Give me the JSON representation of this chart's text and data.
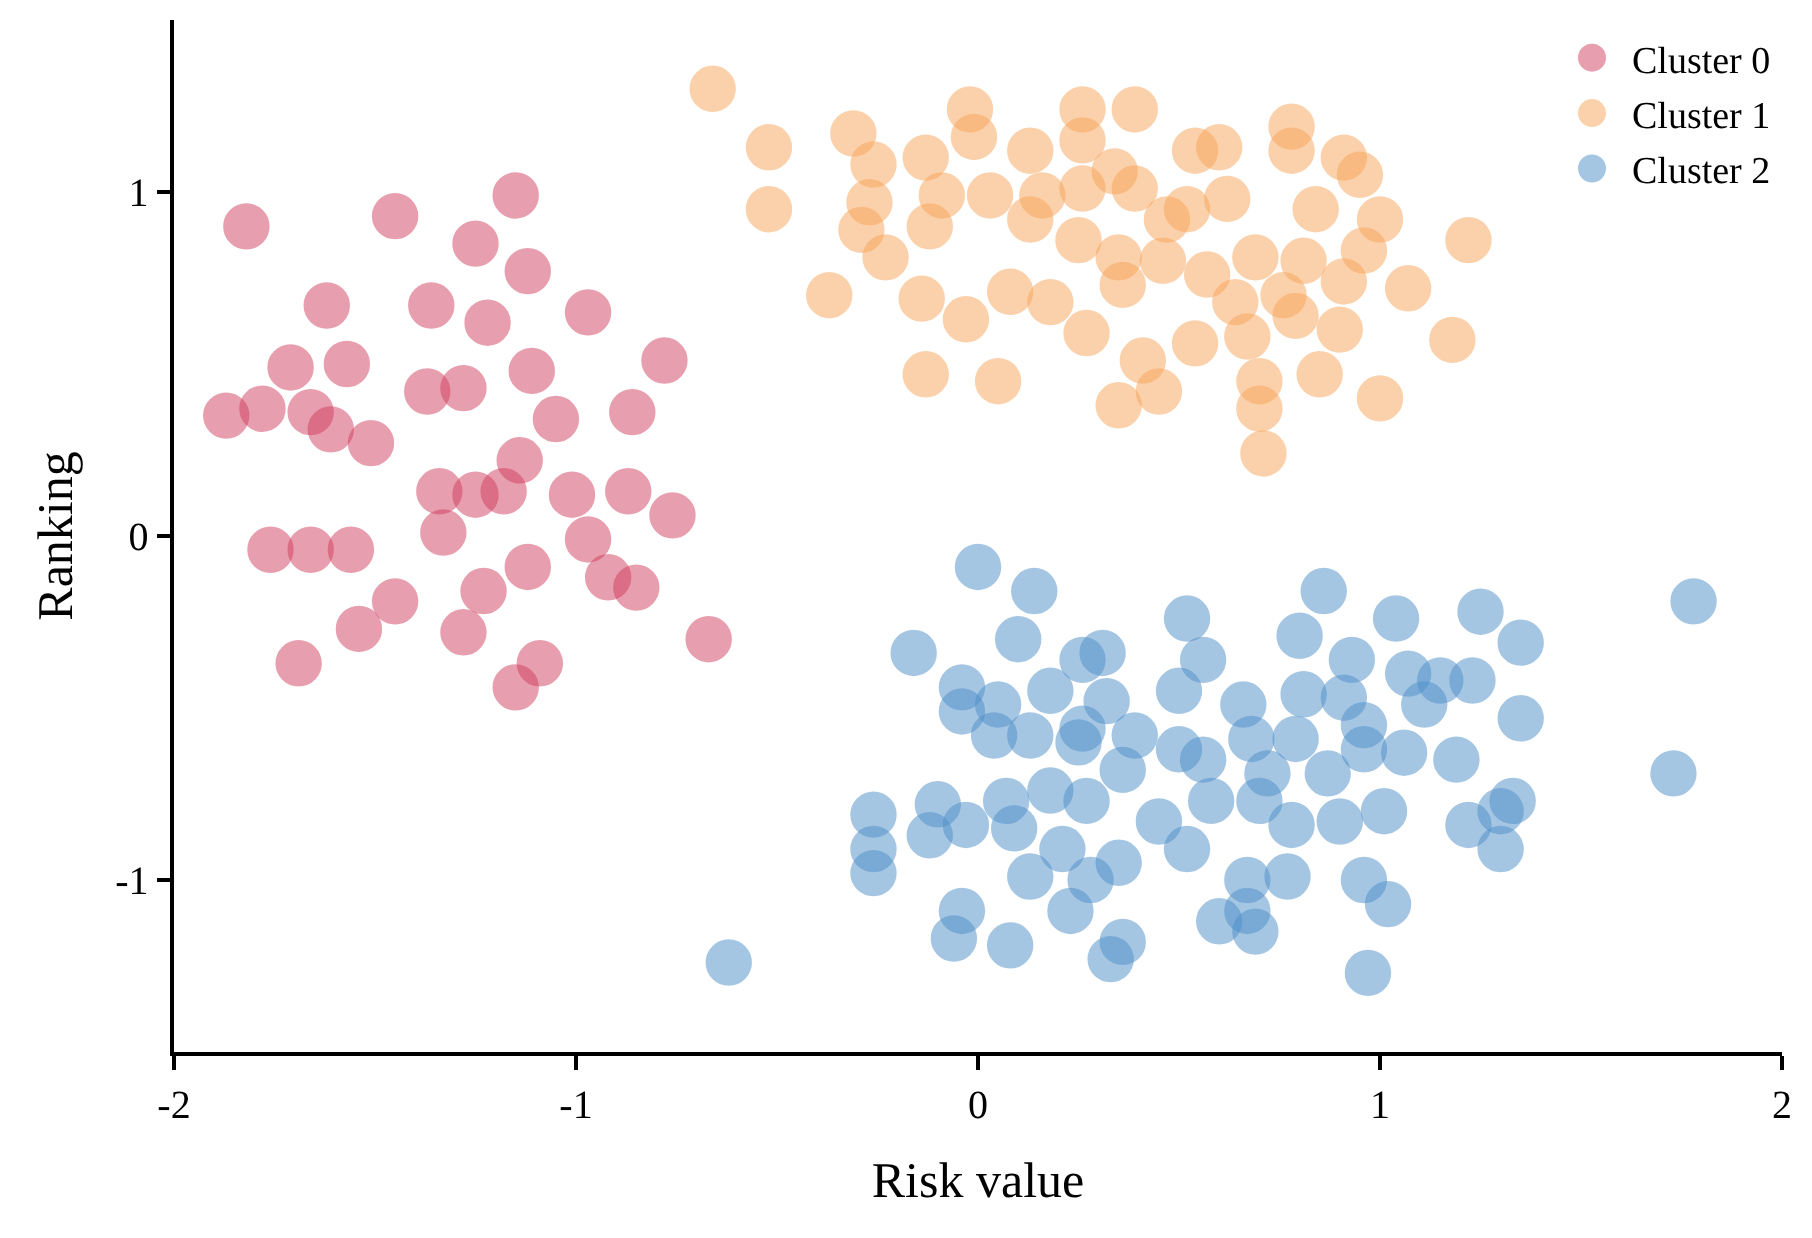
{
  "chart_data": {
    "type": "scatter",
    "xlabel": "Risk value",
    "ylabel": "Ranking",
    "xlim": [
      -2,
      2
    ],
    "ylim": [
      -1.5,
      1.5
    ],
    "xticks": [
      -2,
      -1,
      0,
      1,
      2
    ],
    "yticks": [
      -1,
      0,
      1
    ],
    "legend": "top right",
    "marker": "circle",
    "series": [
      {
        "name": "Cluster 0",
        "color": "#d1405f",
        "x": [
          -1.82,
          -1.45,
          -1.15,
          -1.25,
          -1.62,
          -1.36,
          -1.12,
          -0.97,
          -1.22,
          -0.78,
          -1.37,
          -1.57,
          -1.71,
          -1.87,
          -1.78,
          -1.66,
          -1.61,
          -1.51,
          -1.28,
          -1.11,
          -1.14,
          -1.05,
          -0.86,
          -1.01,
          -1.34,
          -1.25,
          -1.18,
          -0.87,
          -0.76,
          -1.76,
          -1.66,
          -1.56,
          -0.97,
          -1.33,
          -1.12,
          -0.92,
          -0.85,
          -1.45,
          -1.23,
          -1.69,
          -1.54,
          -1.28,
          -0.67,
          -1.09,
          -1.15
        ],
        "values": [
          0.9,
          0.93,
          0.99,
          0.85,
          0.67,
          0.67,
          0.77,
          0.65,
          0.62,
          0.51,
          0.42,
          0.5,
          0.49,
          0.35,
          0.37,
          0.36,
          0.31,
          0.27,
          0.43,
          0.48,
          0.22,
          0.34,
          0.36,
          0.12,
          0.13,
          0.12,
          0.13,
          0.13,
          0.06,
          -0.04,
          -0.04,
          -0.04,
          -0.01,
          0.01,
          -0.09,
          -0.12,
          -0.15,
          -0.19,
          -0.16,
          -0.37,
          -0.27,
          -0.28,
          -0.3,
          -0.37,
          -0.44
        ]
      },
      {
        "name": "Cluster 1",
        "color": "#f9a55a",
        "x": [
          -0.66,
          -0.52,
          -0.52,
          -0.31,
          -0.26,
          -0.27,
          -0.29,
          -0.23,
          -0.37,
          -0.13,
          -0.09,
          -0.12,
          -0.02,
          -0.01,
          0.03,
          0.16,
          0.13,
          0.26,
          0.26,
          0.39,
          0.6,
          0.78,
          0.78,
          0.91,
          0.95,
          1.0,
          0.84,
          0.54,
          0.52,
          0.26,
          0.39,
          0.47,
          0.13,
          0.25,
          0.35,
          0.46,
          0.57,
          0.69,
          0.81,
          0.96,
          0.08,
          0.18,
          0.36,
          0.64,
          0.76,
          0.91,
          1.07,
          1.22,
          1.18,
          -0.13,
          0.05,
          0.27,
          0.41,
          0.54,
          0.67,
          0.79,
          0.9,
          0.7,
          0.85,
          1.0,
          0.35,
          0.45,
          0.7,
          0.71,
          -0.03,
          -0.14,
          0.34,
          0.62
        ],
        "values": [
          1.3,
          1.13,
          0.95,
          1.17,
          1.08,
          0.97,
          0.89,
          0.81,
          0.7,
          1.1,
          0.99,
          0.9,
          1.24,
          1.16,
          0.99,
          0.99,
          1.12,
          1.24,
          1.15,
          1.24,
          1.13,
          1.12,
          1.19,
          1.1,
          1.05,
          0.92,
          0.95,
          1.12,
          0.95,
          1.01,
          1.01,
          0.92,
          0.92,
          0.86,
          0.81,
          0.8,
          0.76,
          0.81,
          0.8,
          0.83,
          0.71,
          0.68,
          0.73,
          0.68,
          0.7,
          0.74,
          0.72,
          0.86,
          0.57,
          0.47,
          0.45,
          0.59,
          0.51,
          0.56,
          0.58,
          0.64,
          0.6,
          0.45,
          0.47,
          0.4,
          0.38,
          0.42,
          0.37,
          0.24,
          0.63,
          0.69,
          1.06,
          0.98
        ]
      },
      {
        "name": "Cluster 2",
        "color": "#4e8fc9",
        "x": [
          0.0,
          0.14,
          -0.16,
          0.1,
          0.52,
          0.86,
          1.04,
          1.25,
          1.78,
          1.35,
          0.26,
          0.31,
          0.56,
          0.8,
          0.93,
          1.07,
          1.15,
          1.23,
          -0.04,
          0.05,
          0.18,
          0.32,
          0.5,
          0.66,
          0.81,
          0.91,
          1.11,
          1.35,
          -0.04,
          0.26,
          0.13,
          0.39,
          0.25,
          0.04,
          0.5,
          0.56,
          0.68,
          0.79,
          0.96,
          0.96,
          1.06,
          1.19,
          1.73,
          0.87,
          0.72,
          0.36,
          0.18,
          0.27,
          0.07,
          -0.1,
          -0.26,
          -0.03,
          0.58,
          0.7,
          1.01,
          1.3,
          0.78,
          0.9,
          0.45,
          1.22,
          1.33,
          -0.12,
          0.09,
          -0.26,
          0.21,
          0.52,
          1.3,
          -0.26,
          0.35,
          0.13,
          0.28,
          0.67,
          0.77,
          0.96,
          0.67,
          -0.04,
          0.23,
          0.6,
          1.02,
          -0.06,
          0.08,
          0.36,
          0.69,
          -0.62,
          0.33,
          0.97
        ],
        "values": [
          -0.09,
          -0.16,
          -0.34,
          -0.3,
          -0.24,
          -0.16,
          -0.24,
          -0.22,
          -0.19,
          -0.31,
          -0.36,
          -0.34,
          -0.36,
          -0.29,
          -0.36,
          -0.4,
          -0.42,
          -0.42,
          -0.44,
          -0.49,
          -0.45,
          -0.48,
          -0.45,
          -0.49,
          -0.46,
          -0.47,
          -0.49,
          -0.53,
          -0.51,
          -0.56,
          -0.58,
          -0.58,
          -0.6,
          -0.58,
          -0.62,
          -0.65,
          -0.59,
          -0.59,
          -0.55,
          -0.62,
          -0.63,
          -0.65,
          -0.69,
          -0.69,
          -0.69,
          -0.68,
          -0.74,
          -0.77,
          -0.77,
          -0.78,
          -0.81,
          -0.84,
          -0.77,
          -0.77,
          -0.8,
          -0.8,
          -0.84,
          -0.83,
          -0.83,
          -0.84,
          -0.77,
          -0.87,
          -0.85,
          -0.91,
          -0.91,
          -0.91,
          -0.91,
          -0.98,
          -0.95,
          -0.99,
          -1.0,
          -1.0,
          -0.99,
          -1.0,
          -1.09,
          -1.09,
          -1.09,
          -1.12,
          -1.07,
          -1.17,
          -1.19,
          -1.18,
          -1.15,
          -1.24,
          -1.23,
          -1.27
        ]
      }
    ]
  }
}
